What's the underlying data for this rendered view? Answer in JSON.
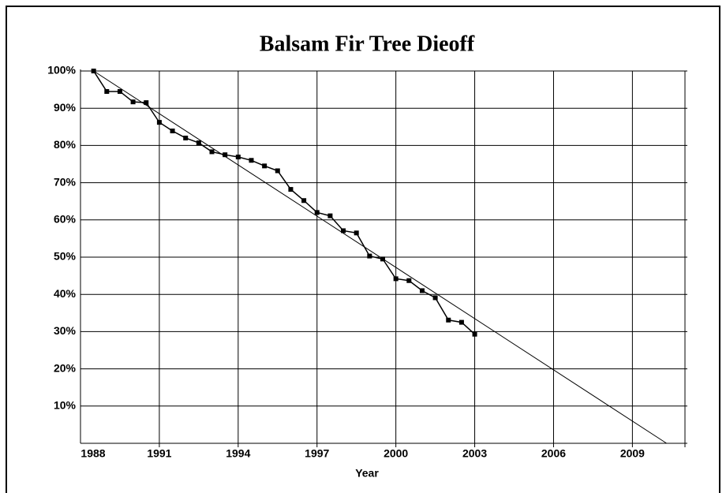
{
  "chart_data": {
    "type": "line",
    "title": "Balsam Fir Tree Dieoff",
    "x_label": "Year",
    "x": [
      1988.5,
      1989,
      1989.5,
      1990,
      1990.5,
      1991,
      1991.5,
      1992,
      1992.5,
      1993,
      1993.5,
      1994,
      1994.5,
      1995,
      1995.5,
      1996,
      1996.5,
      1997,
      1997.5,
      1998,
      1998.5,
      1999,
      1999.5,
      2000,
      2000.5,
      2001,
      2001.5,
      2002,
      2002.5,
      2003
    ],
    "series": [
      {
        "color": "#000000",
        "values": [
          100,
          94.5,
          94.5,
          91.7,
          91.5,
          86.2,
          83.9,
          82,
          80.7,
          78.3,
          77.5,
          76.9,
          76,
          74.5,
          73.2,
          68.2,
          65.2,
          62,
          61.1,
          57.1,
          56.5,
          50.3,
          49.5,
          44.2,
          43.7,
          41,
          39.1,
          33.1,
          32.5,
          29.3
        ]
      }
    ],
    "trendline": {
      "x": [
        1988.5,
        2010.3
      ],
      "values": [
        100,
        0
      ],
      "color": "#000000"
    },
    "xlim": [
      1988,
      2011
    ],
    "ylim": [
      0,
      100
    ],
    "xticks": [
      1988,
      1991,
      1994,
      1997,
      2000,
      2003,
      2006,
      2009
    ],
    "yticks": [
      {
        "value": 10,
        "label": "10%"
      },
      {
        "value": 20,
        "label": "20%"
      },
      {
        "value": 30,
        "label": "30%"
      },
      {
        "value": 40,
        "label": "40%"
      },
      {
        "value": 50,
        "label": "50%"
      },
      {
        "value": 60,
        "label": "60%"
      },
      {
        "value": 70,
        "label": "70%"
      },
      {
        "value": 80,
        "label": "80%"
      },
      {
        "value": 90,
        "label": "90%"
      },
      {
        "value": 100,
        "label": "100%"
      }
    ],
    "grid": true
  }
}
